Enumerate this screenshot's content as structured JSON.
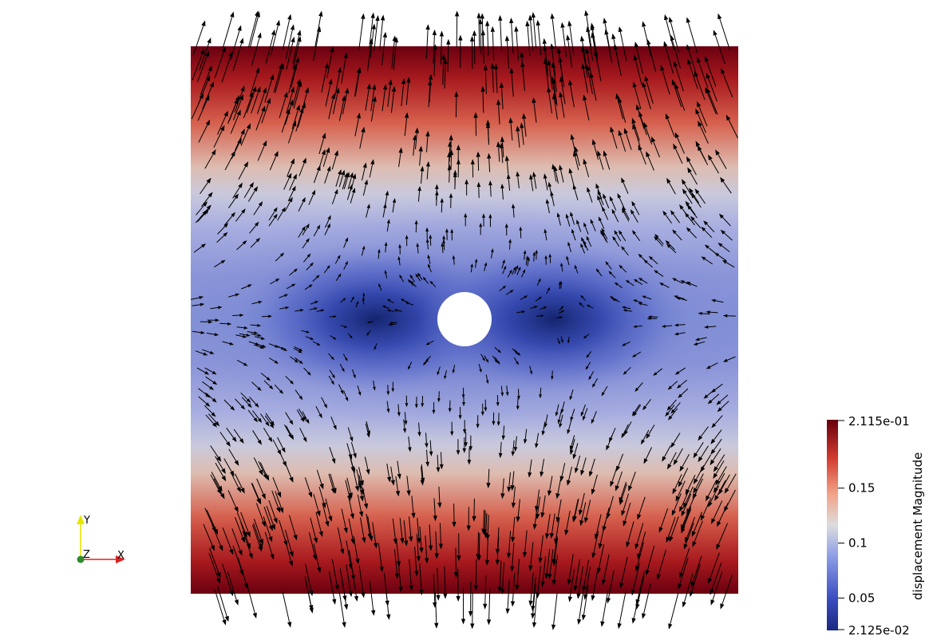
{
  "colorbar": {
    "title": "displacement Magnitude",
    "max_label": "2.115e-01",
    "min_label": "2.125e-02",
    "range": [
      0.02125,
      0.2115
    ],
    "ticks": [
      {
        "value": 0.15,
        "label": "0.15"
      },
      {
        "value": 0.1,
        "label": "0.1"
      },
      {
        "value": 0.05,
        "label": "0.05"
      }
    ],
    "colors": {
      "low": "#3b4cc0",
      "mid": "#dddddd",
      "high": "#b40426",
      "top": "#67000d",
      "bottom": "#1a2a80"
    }
  },
  "axes": {
    "y_label": "Y",
    "z_label": "Z",
    "x_label": "X",
    "colors": {
      "y": "#e6e600",
      "z": "#2e8b2e",
      "x": "#e02020"
    }
  },
  "arrow_color": "#000000",
  "hole_color": "#ffffff"
}
